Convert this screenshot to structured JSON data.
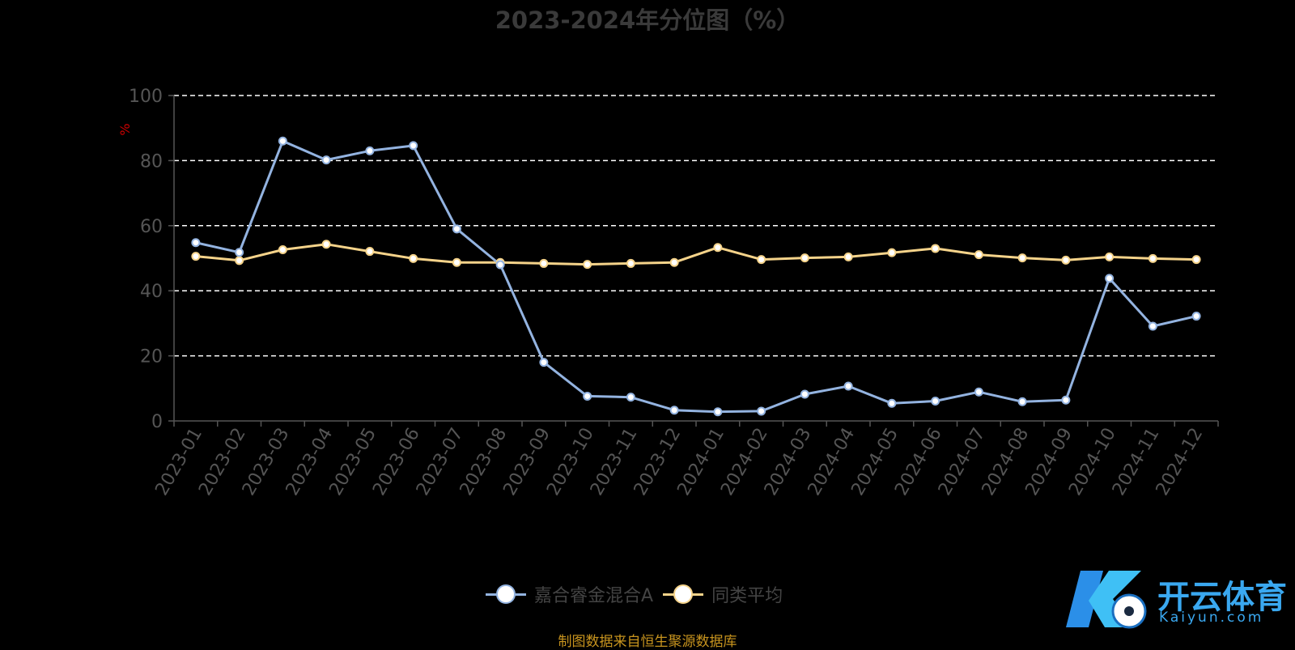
{
  "title": "2023-2024年分位图（%）",
  "ylabel": "%",
  "source": "制图数据来自恒生聚源数据库",
  "watermark": {
    "name": "开云体育",
    "domain": "Kaiyun.com"
  },
  "colors": {
    "series1": "#93b3e0",
    "series2": "#f5d38a",
    "title": "#3a3a3a",
    "axis": "#555555",
    "source": "#c8941e",
    "ylabel": "#cc0000"
  },
  "chart_data": {
    "type": "line",
    "title": "2023-2024年分位图（%）",
    "ylabel": "%",
    "ylim": [
      0,
      100
    ],
    "yticks": [
      0,
      20,
      40,
      60,
      80,
      100
    ],
    "grid": true,
    "legend_position": "bottom-center",
    "categories": [
      "2023-01",
      "2023-02",
      "2023-03",
      "2023-04",
      "2023-05",
      "2023-06",
      "2023-07",
      "2023-08",
      "2023-09",
      "2023-10",
      "2023-11",
      "2023-12",
      "2024-01",
      "2024-02",
      "2024-03",
      "2024-04",
      "2024-05",
      "2024-06",
      "2024-07",
      "2024-08",
      "2024-09",
      "2024-10",
      "2024-11",
      "2024-12"
    ],
    "series": [
      {
        "name": "嘉合睿金混合A",
        "values": [
          54.8,
          51.8,
          86.0,
          80.2,
          83.0,
          84.6,
          59.0,
          48.0,
          18.0,
          7.6,
          7.3,
          3.3,
          2.8,
          3.0,
          8.2,
          10.7,
          5.4,
          6.1,
          8.9,
          5.9,
          6.4,
          43.8,
          29.1,
          32.2
        ]
      },
      {
        "name": "同类平均",
        "values": [
          50.6,
          49.3,
          52.6,
          54.3,
          52.1,
          49.9,
          48.7,
          48.7,
          48.4,
          48.1,
          48.4,
          48.7,
          53.3,
          49.6,
          50.1,
          50.4,
          51.7,
          53.0,
          51.1,
          50.1,
          49.4,
          50.4,
          49.9,
          49.6
        ]
      }
    ]
  }
}
